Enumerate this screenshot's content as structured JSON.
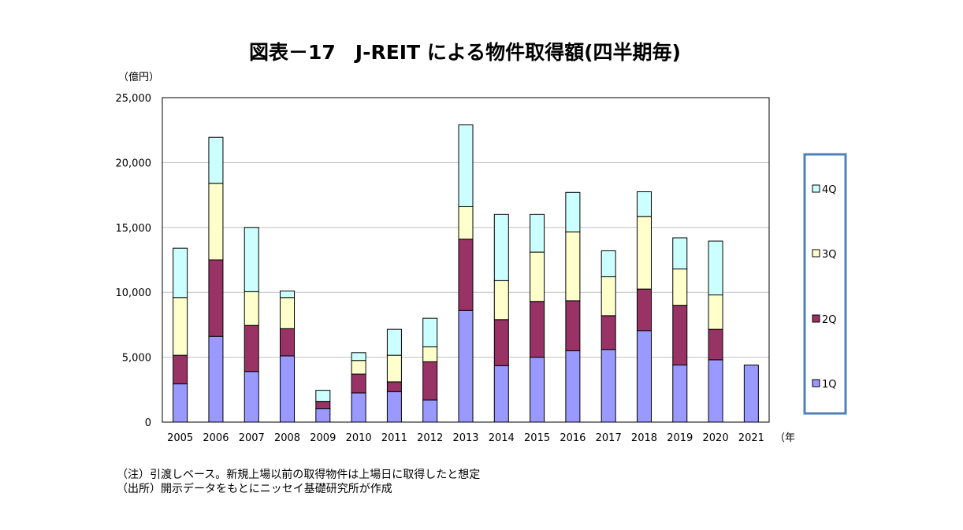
{
  "chart_data": {
    "type": "bar",
    "stacked": true,
    "title": "図表－17　J-REIT による物件取得額(四半期毎)",
    "ylabel": "（億円）",
    "xlabel": "（年",
    "ylim": [
      0,
      25000
    ],
    "yticks": [
      0,
      5000,
      10000,
      15000,
      20000,
      25000
    ],
    "ytick_labels": [
      "0",
      "5,000",
      "10,000",
      "15,000",
      "20,000",
      "25,000"
    ],
    "grid": true,
    "legend_position": "right",
    "categories": [
      "2005",
      "2006",
      "2007",
      "2008",
      "2009",
      "2010",
      "2011",
      "2012",
      "2013",
      "2014",
      "2015",
      "2016",
      "2017",
      "2018",
      "2019",
      "2020",
      "2021"
    ],
    "series": [
      {
        "name": "1Q",
        "color": "#9999ff",
        "values": [
          2950,
          6600,
          3900,
          5100,
          1050,
          2250,
          2350,
          1700,
          8600,
          4350,
          5000,
          5500,
          5600,
          7050,
          4400,
          4800,
          4400
        ]
      },
      {
        "name": "2Q",
        "color": "#993366",
        "values": [
          2200,
          5900,
          3550,
          2100,
          550,
          1450,
          750,
          2950,
          5500,
          3550,
          4300,
          3850,
          2600,
          3200,
          4600,
          2350,
          0
        ]
      },
      {
        "name": "3Q",
        "color": "#ffffcc",
        "values": [
          4450,
          5900,
          2600,
          2400,
          0,
          1050,
          2050,
          1150,
          2500,
          3000,
          3800,
          5300,
          3000,
          5600,
          2800,
          2650,
          0
        ]
      },
      {
        "name": "4Q",
        "color": "#ccffff",
        "values": [
          3800,
          3550,
          4950,
          500,
          850,
          600,
          2000,
          2200,
          6300,
          5100,
          2900,
          3050,
          2000,
          1900,
          2400,
          4150,
          0
        ]
      }
    ]
  },
  "notes": {
    "note1": "（注）引渡しベース。新規上場以前の取得物件は上場日に取得したと想定",
    "note2": "（出所）開示データをもとにニッセイ基礎研究所が作成"
  },
  "colors": {
    "legend_border": "#4f81bd",
    "gridline": "#c0c0c0",
    "bar_outline": "#000000"
  }
}
